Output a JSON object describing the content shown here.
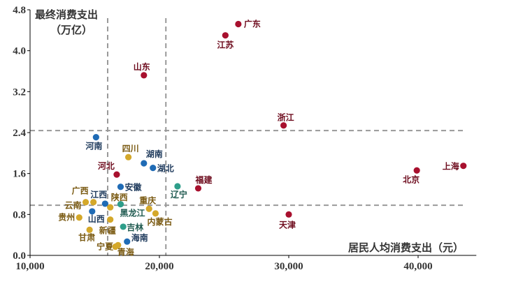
{
  "chart_data": {
    "type": "scatter",
    "title": "",
    "ylabel": "最终消费支出",
    "ylabel_unit": "（万亿）",
    "xlabel": "居民人均消费支出（元）",
    "xlim": [
      10000,
      44500
    ],
    "ylim": [
      0,
      4.8
    ],
    "xticks": [
      10000,
      20000,
      30000,
      40000
    ],
    "xtick_labels": [
      "10,000",
      "20,000",
      "30,000",
      "40,000"
    ],
    "yticks": [
      0,
      0.8,
      1.6,
      2.4,
      3.2,
      4.0,
      4.8
    ],
    "ytick_labels": [
      "0.0",
      "0.8",
      "1.6",
      "2.4",
      "3.2",
      "4.0",
      "4.8"
    ],
    "grid": false,
    "reference_lines": {
      "x": [
        16000,
        20500
      ],
      "y": [
        2.44,
        0.98
      ],
      "style": "dashed",
      "color": "#999999"
    },
    "colors": {
      "red": {
        "dot": "#A8102E",
        "label": "#6E0C1E"
      },
      "blue": {
        "dot": "#1F6BB5",
        "label": "#1E3A5C"
      },
      "gold": {
        "dot": "#D4A82A",
        "label": "#7A5A12"
      },
      "teal": {
        "dot": "#2E9E8A",
        "label": "#1F5A50"
      }
    },
    "points": [
      {
        "name": "广东",
        "x": 26100,
        "y": 4.52,
        "group": "red"
      },
      {
        "name": "江苏",
        "x": 25100,
        "y": 4.3,
        "group": "red"
      },
      {
        "name": "山东",
        "x": 18800,
        "y": 3.52,
        "group": "red"
      },
      {
        "name": "浙江",
        "x": 29600,
        "y": 2.54,
        "group": "red"
      },
      {
        "name": "上海",
        "x": 43500,
        "y": 1.75,
        "group": "red"
      },
      {
        "name": "北京",
        "x": 39900,
        "y": 1.66,
        "group": "red"
      },
      {
        "name": "天津",
        "x": 30000,
        "y": 0.8,
        "group": "red"
      },
      {
        "name": "福建",
        "x": 23000,
        "y": 1.31,
        "group": "red"
      },
      {
        "name": "辽宁",
        "x": 21400,
        "y": 1.35,
        "group": "teal"
      },
      {
        "name": "河南",
        "x": 15100,
        "y": 2.31,
        "group": "blue"
      },
      {
        "name": "四川",
        "x": 17600,
        "y": 1.92,
        "group": "gold"
      },
      {
        "name": "湖南",
        "x": 18800,
        "y": 1.8,
        "group": "blue"
      },
      {
        "name": "湖北",
        "x": 19500,
        "y": 1.71,
        "group": "blue"
      },
      {
        "name": "河北",
        "x": 16700,
        "y": 1.58,
        "group": "red"
      },
      {
        "name": "安徽",
        "x": 17000,
        "y": 1.34,
        "group": "blue"
      },
      {
        "name": "云南",
        "x": 14300,
        "y": 1.04,
        "group": "gold"
      },
      {
        "name": "广西",
        "x": 14900,
        "y": 1.04,
        "group": "gold"
      },
      {
        "name": "江西",
        "x": 15800,
        "y": 1.01,
        "group": "blue"
      },
      {
        "name": "陕西",
        "x": 16200,
        "y": 0.94,
        "group": "gold"
      },
      {
        "name": "黑龙江",
        "x": 17000,
        "y": 1.0,
        "group": "teal"
      },
      {
        "name": "山西",
        "x": 14800,
        "y": 0.86,
        "group": "blue"
      },
      {
        "name": "贵州",
        "x": 13800,
        "y": 0.74,
        "group": "gold"
      },
      {
        "name": "新疆",
        "x": 16200,
        "y": 0.7,
        "group": "gold"
      },
      {
        "name": "甘肃",
        "x": 14600,
        "y": 0.5,
        "group": "gold"
      },
      {
        "name": "吉林",
        "x": 17200,
        "y": 0.56,
        "group": "teal"
      },
      {
        "name": "重庆",
        "x": 19200,
        "y": 0.91,
        "group": "gold"
      },
      {
        "name": "内蒙古",
        "x": 19700,
        "y": 0.82,
        "group": "gold"
      },
      {
        "name": "海南",
        "x": 17500,
        "y": 0.27,
        "group": "blue"
      },
      {
        "name": "宁夏",
        "x": 16600,
        "y": 0.17,
        "group": "gold"
      },
      {
        "name": "青海",
        "x": 16800,
        "y": 0.2,
        "group": "gold"
      }
    ]
  }
}
